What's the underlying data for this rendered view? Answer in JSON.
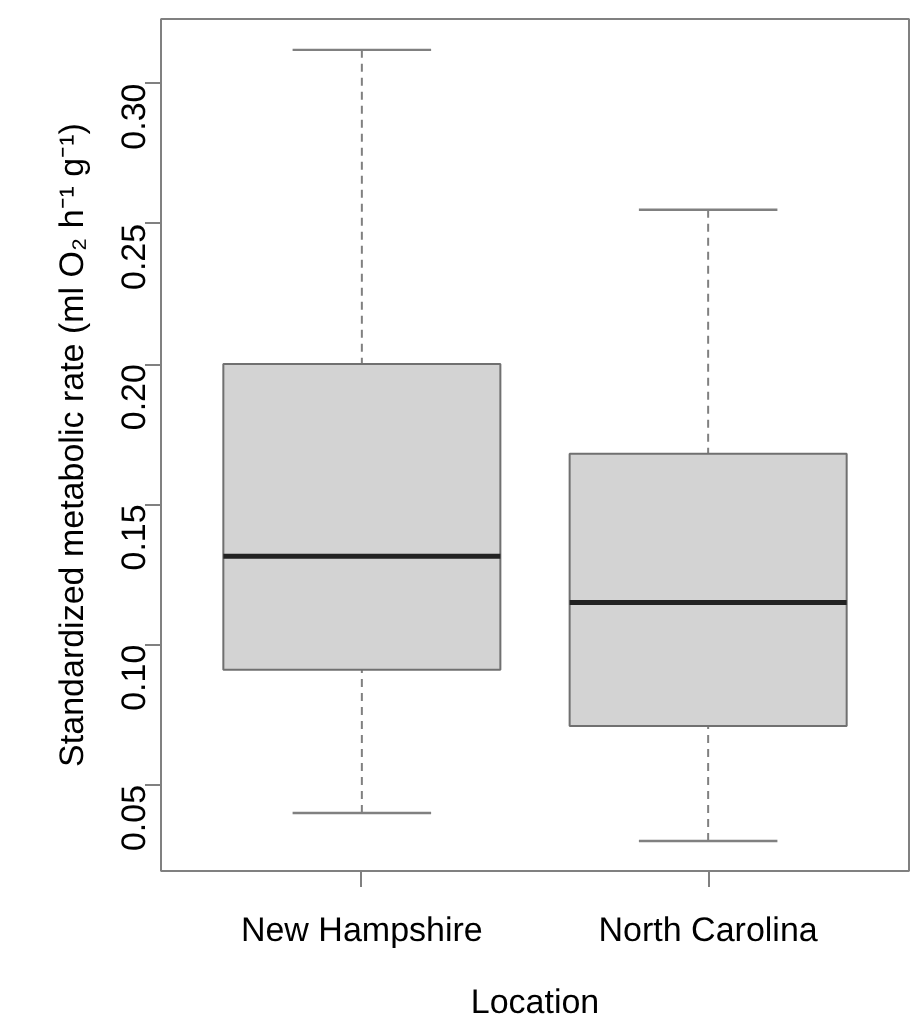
{
  "chart_data": {
    "type": "box",
    "categories": [
      "New Hampshire",
      "North Carolina"
    ],
    "boxes": [
      {
        "low": 0.04,
        "q1": 0.091,
        "median": 0.1315,
        "q3": 0.2,
        "high": 0.312
      },
      {
        "low": 0.03,
        "q1": 0.071,
        "median": 0.115,
        "q3": 0.168,
        "high": 0.255
      }
    ],
    "color": "#d3d3d3",
    "xlabel": "Location",
    "ylabel": "Standardized metabolic rate (ml O₂ h⁻¹ g⁻¹)",
    "ylim": [
      0.0193,
      0.323
    ],
    "yticks": [
      0.05,
      {
        "value": 0.1,
        "label": "0.10"
      },
      0.15,
      {
        "value": 0.2,
        "label": "0.20"
      },
      0.25,
      {
        "value": 0.3,
        "label": "0.30"
      }
    ]
  }
}
